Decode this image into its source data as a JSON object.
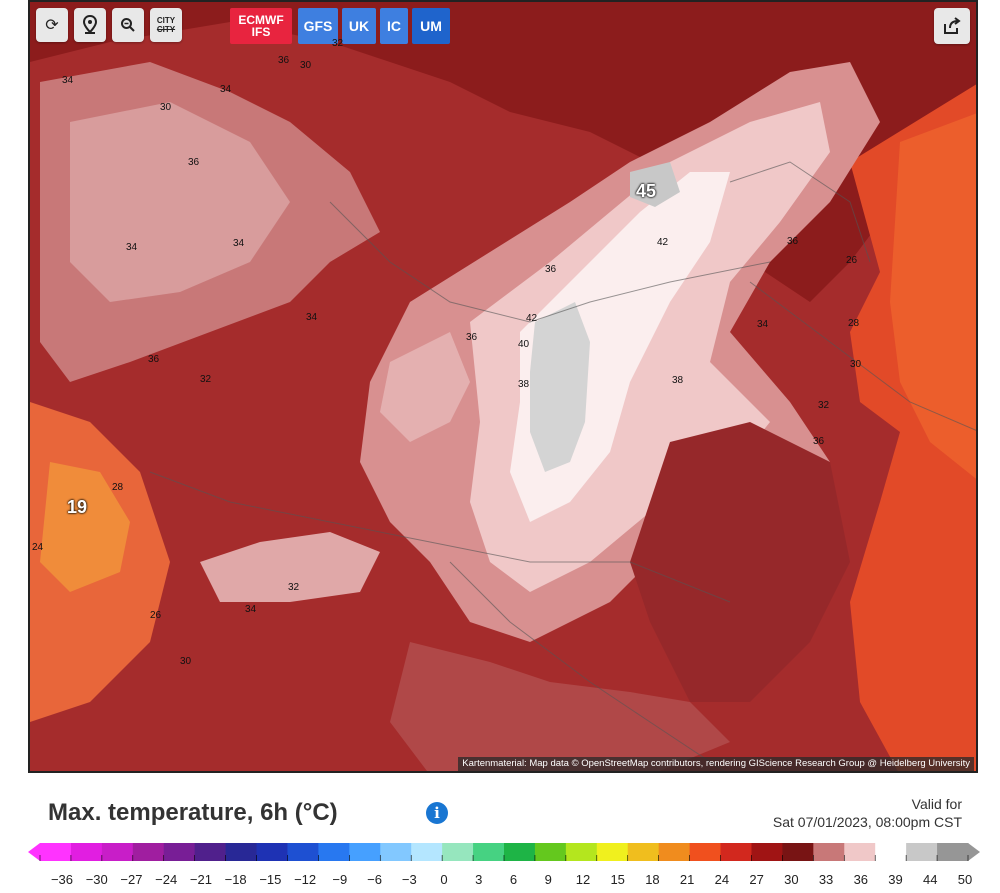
{
  "toolbar": {
    "refresh_icon": "refresh-icon",
    "location_icon": "location-pin-icon",
    "zoom_icon": "zoom-out-icon",
    "city_label_top": "CITY",
    "city_label_bottom": "CITY",
    "models": [
      {
        "id": "ecmwf",
        "line1": "ECMWF",
        "line2": "IFS",
        "active": true,
        "color": "#e8243f"
      },
      {
        "id": "gfs",
        "label": "GFS",
        "color": "#3e7fe0"
      },
      {
        "id": "uk",
        "label": "UK",
        "color": "#3e7fe0"
      },
      {
        "id": "ic",
        "label": "IC",
        "color": "#3e7fe0"
      },
      {
        "id": "um",
        "label": "UM",
        "color": "#1f64cc"
      }
    ],
    "share_icon": "share-icon"
  },
  "map": {
    "attribution": "Kartenmaterial: Map data © OpenStreetMap contributors, rendering GIScience Research Group @ Heidelberg University",
    "labels": [
      "34",
      "36",
      "30",
      "32",
      "34",
      "36",
      "34",
      "34",
      "36",
      "30",
      "32",
      "34",
      "36",
      "38",
      "40",
      "42",
      "36",
      "26",
      "28",
      "30",
      "32",
      "34",
      "36",
      "38",
      "42",
      "45",
      "19",
      "24",
      "26",
      "28",
      "30",
      "32",
      "34",
      "36"
    ],
    "extreme_high": "45",
    "extreme_low": "19"
  },
  "footer": {
    "title": "Max. temperature, 6h (°C)",
    "info_icon": "info-icon",
    "valid_label": "Valid for",
    "valid_time": "Sat 07/01/2023, 08:00pm CST"
  },
  "legend": {
    "ticks": [
      "-36",
      "-30",
      "-27",
      "-24",
      "-21",
      "-18",
      "-15",
      "-12",
      "-9",
      "-6",
      "-3",
      "0",
      "3",
      "6",
      "9",
      "12",
      "15",
      "18",
      "21",
      "24",
      "27",
      "30",
      "33",
      "36",
      "39",
      "44",
      "50"
    ],
    "colors": [
      "#ff33ff",
      "#e11ee1",
      "#c81ec8",
      "#a01ea0",
      "#781e96",
      "#50208c",
      "#282896",
      "#1e32b4",
      "#1e50d2",
      "#2878f0",
      "#46a0ff",
      "#82c8ff",
      "#b4e6ff",
      "#96e6be",
      "#46d282",
      "#1eb446",
      "#64c81e",
      "#b4e61e",
      "#f0f01e",
      "#f0be1e",
      "#f08c1e",
      "#f0501e",
      "#d2281e",
      "#a01414",
      "#781414",
      "#c87878",
      "#f0c8c8",
      "#ffffff",
      "#c8c8c8",
      "#969696"
    ]
  }
}
